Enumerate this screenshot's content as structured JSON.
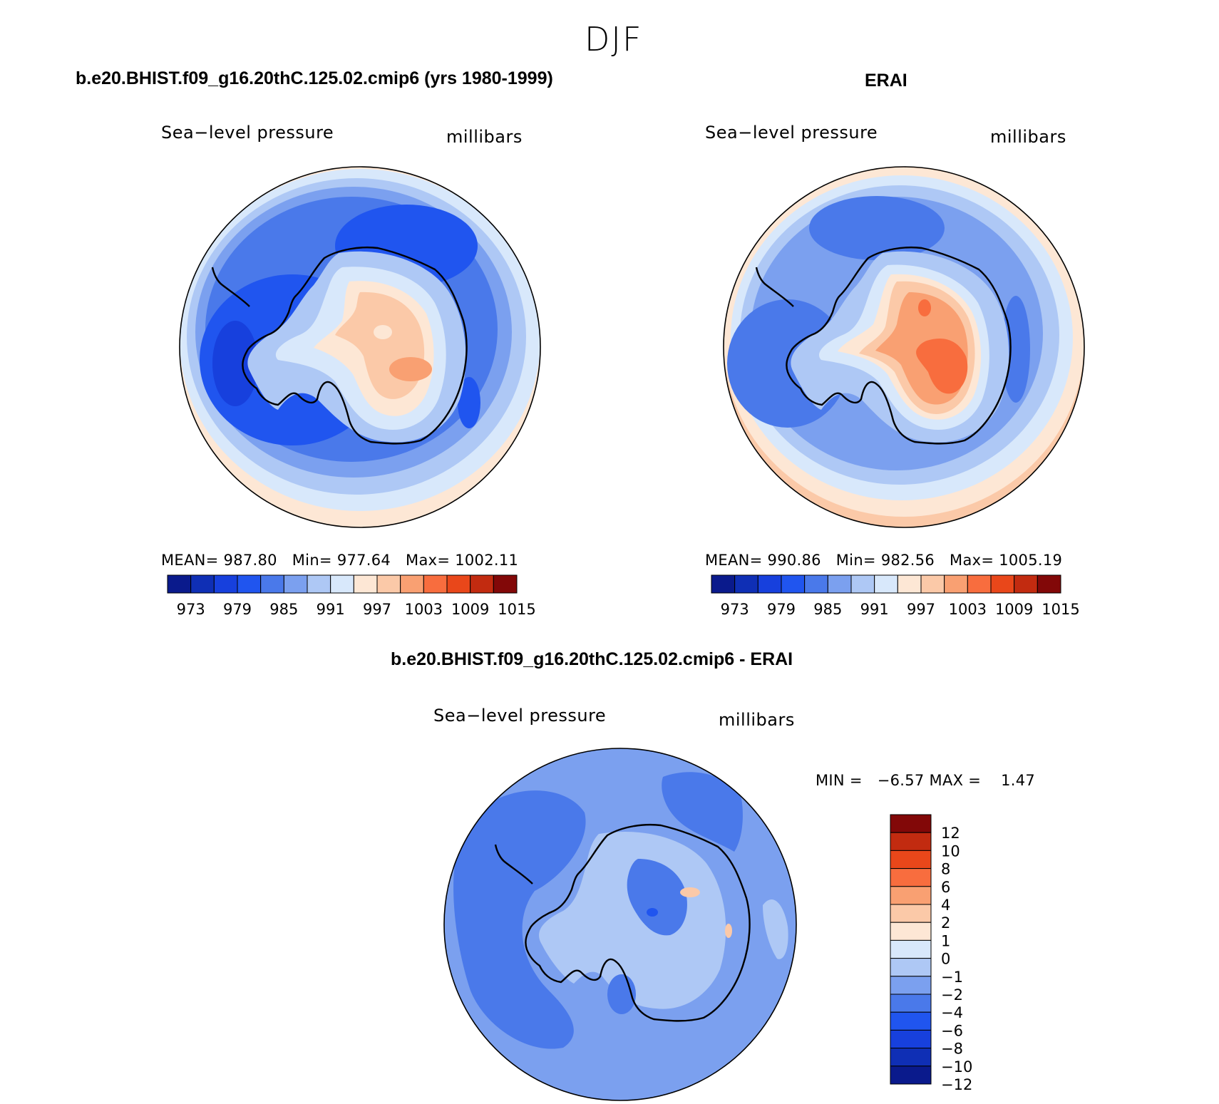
{
  "season": "DJF",
  "colors": {
    "abs_levels": [
      "#0a1a8c",
      "#0f2fb5",
      "#1740dd",
      "#2055ef",
      "#4a79ea",
      "#7ba0ef",
      "#aec8f5",
      "#d8e8fb",
      "#fde7d5",
      "#fbc9a8",
      "#f9a072",
      "#f86d3e",
      "#e9471a",
      "#c22b10",
      "#820808"
    ],
    "diff_levels": [
      "#0a1a8c",
      "#0f2fb5",
      "#1740dd",
      "#2055ef",
      "#4a79ea",
      "#7ba0ef",
      "#aec8f5",
      "#d8e8fb",
      "#fde7d5",
      "#fbc9a8",
      "#f9a072",
      "#f86d3e",
      "#e9471a",
      "#c22b10",
      "#820808"
    ],
    "diff_bar_top_to_bottom": [
      "#820808",
      "#c22b10",
      "#e9471a",
      "#f86d3e",
      "#f9a072",
      "#fbc9a8",
      "#fde7d5",
      "#d8e8fb",
      "#aec8f5",
      "#7ba0ef",
      "#4a79ea",
      "#2055ef",
      "#1740dd",
      "#0f2fb5",
      "#0a1a8c"
    ]
  },
  "panels": {
    "model": {
      "title": "b.e20.BHIST.f09_g16.20thC.125.02.cmip6 (yrs 1980-1999)",
      "left_label": "Sea−level pressure",
      "right_label": "millibars",
      "stats": {
        "mean_label": "MEAN=",
        "mean": "987.80",
        "min_label": "Min=",
        "min": "977.64",
        "max_label": "Max=",
        "max": "1002.11"
      }
    },
    "obs": {
      "title": "ERAI",
      "left_label": "Sea−level pressure",
      "right_label": "millibars",
      "stats": {
        "mean_label": "MEAN=",
        "mean": "990.86",
        "min_label": "Min=",
        "min": "982.56",
        "max_label": "Max=",
        "max": "1005.19"
      }
    },
    "diff": {
      "title": "b.e20.BHIST.f09_g16.20thC.125.02.cmip6 - ERAI",
      "left_label": "Sea−level pressure",
      "right_label": "millibars",
      "stats_text": "MIN =   −6.57 MAX =    1.47"
    }
  },
  "chart_data": [
    {
      "type": "heatmap",
      "projection": "south-polar-stereographic",
      "title": "b.e20.BHIST.f09_g16.20thC.125.02.cmip6 (yrs 1980-1999)",
      "variable": "Sea−level pressure",
      "units": "millibars",
      "mean": 987.8,
      "min": 977.64,
      "max": 1002.11,
      "contour_levels": [
        973,
        976,
        979,
        982,
        985,
        988,
        991,
        994,
        997,
        1000,
        1003,
        1006,
        1009,
        1012,
        1015
      ],
      "colorbar_tick_labels": [
        "973",
        "979",
        "985",
        "991",
        "997",
        "1003",
        "1009",
        "1015"
      ]
    },
    {
      "type": "heatmap",
      "projection": "south-polar-stereographic",
      "title": "ERAI",
      "variable": "Sea−level pressure",
      "units": "millibars",
      "mean": 990.86,
      "min": 982.56,
      "max": 1005.19,
      "contour_levels": [
        973,
        976,
        979,
        982,
        985,
        988,
        991,
        994,
        997,
        1000,
        1003,
        1006,
        1009,
        1012,
        1015
      ],
      "colorbar_tick_labels": [
        "973",
        "979",
        "985",
        "991",
        "997",
        "1003",
        "1009",
        "1015"
      ]
    },
    {
      "type": "heatmap",
      "projection": "south-polar-stereographic",
      "title": "b.e20.BHIST.f09_g16.20thC.125.02.cmip6 - ERAI",
      "variable": "Sea−level pressure",
      "units": "millibars",
      "min": -6.57,
      "max": 1.47,
      "contour_levels": [
        -12,
        -10,
        -8,
        -6,
        -4,
        -2,
        -1,
        0,
        1,
        2,
        4,
        6,
        8,
        10,
        12
      ],
      "colorbar_tick_labels": [
        "12",
        "10",
        "8",
        "6",
        "4",
        "2",
        "1",
        "0",
        "−1",
        "−2",
        "−4",
        "−6",
        "−8",
        "−10",
        "−12"
      ]
    }
  ]
}
